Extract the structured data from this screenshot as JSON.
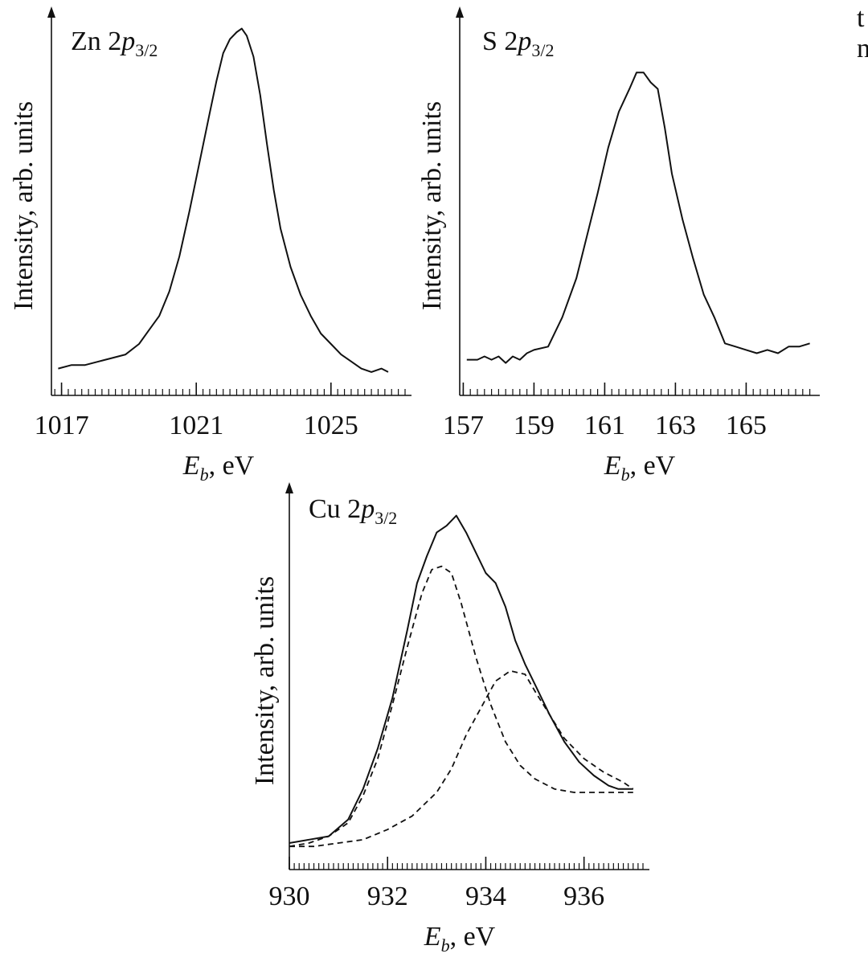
{
  "chart_data": [
    {
      "type": "line",
      "title": "Zn 2p3/2",
      "title_parts": {
        "element": "Zn 2",
        "orbital": "p",
        "sub": "3/2"
      },
      "xlabel": {
        "var": "E",
        "sub": "b",
        "unit": ", eV"
      },
      "ylabel": "Intensity, arb. units",
      "xlim": [
        1016.7,
        1027.2
      ],
      "ylim": [
        0,
        100
      ],
      "x_ticks": [
        1017,
        1021,
        1025
      ],
      "x_tick_labels": [
        "1017",
        "1021",
        "1025"
      ],
      "grid": false,
      "series": [
        {
          "style": "solid",
          "x": [
            1016.9,
            1017.3,
            1017.7,
            1018.1,
            1018.5,
            1018.9,
            1019.3,
            1019.6,
            1019.9,
            1020.2,
            1020.5,
            1020.8,
            1021.1,
            1021.4,
            1021.6,
            1021.8,
            1022.0,
            1022.2,
            1022.35,
            1022.5,
            1022.7,
            1022.9,
            1023.1,
            1023.3,
            1023.5,
            1023.8,
            1024.1,
            1024.4,
            1024.7,
            1025.0,
            1025.3,
            1025.6,
            1025.9,
            1026.2,
            1026.5,
            1026.7
          ],
          "y": [
            4,
            5,
            5,
            6,
            7,
            8,
            11,
            15,
            19,
            26,
            36,
            49,
            63,
            77,
            86,
            94,
            98,
            100,
            101,
            99,
            93,
            82,
            68,
            55,
            44,
            33,
            25,
            19,
            14,
            11,
            8,
            6,
            4,
            3,
            4,
            3
          ]
        }
      ]
    },
    {
      "type": "line",
      "title": "S 2p3/2",
      "title_parts": {
        "element": "S 2",
        "orbital": "p",
        "sub": "3/2"
      },
      "xlabel": {
        "var": "E",
        "sub": "b",
        "unit": ", eV"
      },
      "ylabel": "Intensity, arb. units",
      "xlim": [
        156.9,
        166.9
      ],
      "ylim": [
        0,
        100
      ],
      "x_ticks": [
        157,
        159,
        161,
        163,
        165
      ],
      "x_tick_labels": [
        "157",
        "159",
        "161",
        "163",
        "165"
      ],
      "grid": false,
      "series": [
        {
          "style": "solid",
          "x": [
            157.1,
            157.4,
            157.6,
            157.8,
            158.0,
            158.2,
            158.4,
            158.6,
            158.8,
            159.0,
            159.4,
            159.8,
            160.2,
            160.5,
            160.8,
            161.1,
            161.4,
            161.7,
            161.9,
            162.1,
            162.3,
            162.5,
            162.7,
            162.9,
            163.2,
            163.5,
            163.8,
            164.1,
            164.4,
            164.7,
            165.0,
            165.3,
            165.6,
            165.9,
            166.2,
            166.5,
            166.8
          ],
          "y": [
            7,
            7,
            8,
            7,
            8,
            6,
            8,
            7,
            9,
            10,
            11,
            20,
            32,
            45,
            58,
            72,
            83,
            90,
            95,
            95,
            92,
            90,
            78,
            64,
            50,
            38,
            27,
            20,
            12,
            11,
            10,
            9,
            10,
            9,
            11,
            11,
            12
          ]
        }
      ]
    },
    {
      "type": "line",
      "title": "Cu 2p3/2",
      "title_parts": {
        "element": "Cu 2",
        "orbital": "p",
        "sub": "3/2"
      },
      "xlabel": {
        "var": "E",
        "sub": "b",
        "unit": ", eV"
      },
      "ylabel": "Intensity, arb. units",
      "xlim": [
        930.0,
        937.2
      ],
      "ylim": [
        0,
        100
      ],
      "x_ticks": [
        930,
        932,
        934,
        936
      ],
      "x_tick_labels": [
        "930",
        "932",
        "934",
        "936"
      ],
      "grid": false,
      "series": [
        {
          "style": "solid",
          "x": [
            930.0,
            930.4,
            930.8,
            931.2,
            931.5,
            931.8,
            932.1,
            932.4,
            932.6,
            932.8,
            933.0,
            933.2,
            933.4,
            933.6,
            933.8,
            934.0,
            934.2,
            934.4,
            934.6,
            934.8,
            935.0,
            935.3,
            935.6,
            935.9,
            936.2,
            936.5,
            936.7,
            937.0
          ],
          "y": [
            5,
            6,
            7,
            12,
            21,
            33,
            48,
            68,
            82,
            90,
            97,
            99,
            102,
            97,
            91,
            85,
            82,
            75,
            65,
            58,
            52,
            43,
            35,
            29,
            25,
            22,
            21,
            21
          ]
        },
        {
          "style": "dashed",
          "x": [
            930.0,
            930.4,
            930.8,
            931.2,
            931.5,
            931.8,
            932.1,
            932.4,
            932.7,
            932.9,
            933.1,
            933.3,
            933.5,
            933.8,
            934.1,
            934.4,
            934.7,
            935.0,
            935.4,
            935.8,
            936.2,
            936.6,
            937.0
          ],
          "y": [
            4,
            5,
            7,
            11,
            19,
            30,
            46,
            63,
            79,
            86,
            87,
            85,
            76,
            60,
            46,
            35,
            28,
            24,
            21,
            20,
            20,
            20,
            20
          ]
        },
        {
          "style": "dashed",
          "x": [
            930.0,
            930.5,
            931.0,
            931.5,
            932.0,
            932.5,
            933.0,
            933.3,
            933.6,
            933.9,
            934.2,
            934.5,
            934.8,
            935.0,
            935.3,
            935.6,
            936.0,
            936.4,
            936.8,
            937.0
          ],
          "y": [
            4,
            4,
            5,
            6,
            9,
            13,
            20,
            27,
            37,
            45,
            53,
            56,
            55,
            50,
            43,
            36,
            30,
            26,
            23,
            21
          ]
        }
      ]
    }
  ],
  "edge_text": {
    "line1": "t",
    "line2": "n"
  }
}
